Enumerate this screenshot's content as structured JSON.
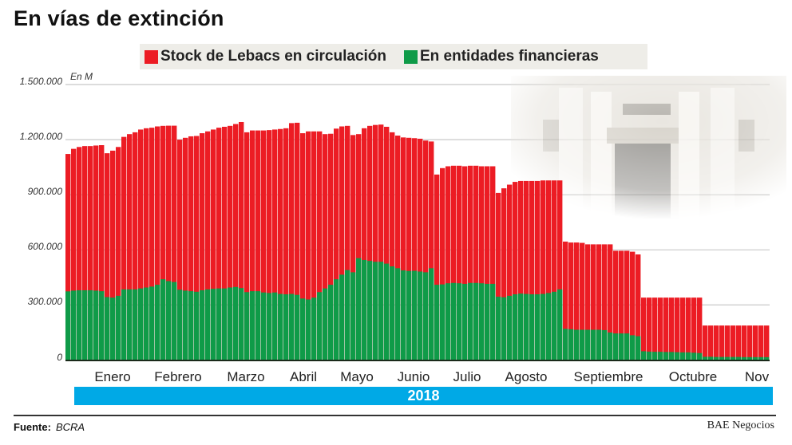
{
  "title": "En vías de extinción",
  "source_label": "Fuente:",
  "source_value": "BCRA",
  "brand": "BAE Negocios",
  "chart_data": {
    "type": "bar",
    "stacked": false,
    "overlapping": true,
    "unit_label": "En M",
    "ylim": [
      0,
      1500000
    ],
    "yticks": [
      "1.500.000",
      "1.200.000",
      "900.000",
      "600.000",
      "300.000",
      "0"
    ],
    "ytick_values": [
      1500000,
      1200000,
      900000,
      600000,
      300000,
      0
    ],
    "grid": true,
    "legend_position": "top",
    "year_label": "2018",
    "months": [
      "Enero",
      "Febrero",
      "Marzo",
      "Abril",
      "Mayo",
      "Junio",
      "Julio",
      "Agosto",
      "Septiembre",
      "Octubre",
      "Nov"
    ],
    "series": [
      {
        "name": "Stock de Lebacs en circulación",
        "color": "#ec1c24",
        "unit": "thousands of M",
        "values": [
          1122,
          1150,
          1160,
          1165,
          1165,
          1168,
          1170,
          1126,
          1140,
          1160,
          1215,
          1230,
          1240,
          1255,
          1262,
          1265,
          1272,
          1275,
          1276,
          1276,
          1200,
          1210,
          1218,
          1220,
          1235,
          1245,
          1255,
          1265,
          1270,
          1275,
          1285,
          1296,
          1240,
          1250,
          1250,
          1250,
          1252,
          1255,
          1258,
          1262,
          1290,
          1292,
          1235,
          1245,
          1245,
          1245,
          1230,
          1232,
          1260,
          1272,
          1275,
          1225,
          1230,
          1262,
          1275,
          1280,
          1282,
          1270,
          1240,
          1222,
          1212,
          1210,
          1208,
          1205,
          1195,
          1190,
          1010,
          1045,
          1055,
          1058,
          1058,
          1055,
          1058,
          1058,
          1055,
          1055,
          1055,
          910,
          935,
          955,
          970,
          975,
          975,
          975,
          975,
          978,
          978,
          978,
          978,
          645,
          640,
          640,
          638,
          630,
          630,
          630,
          630,
          630,
          595,
          595,
          595,
          590,
          575,
          340,
          340,
          340,
          340,
          340,
          340,
          340,
          340,
          340,
          340,
          340,
          188,
          188,
          188,
          188,
          188,
          188,
          188,
          188,
          188,
          188,
          188,
          188
        ]
      },
      {
        "name": "En entidades financieras",
        "color": "#0f9b48",
        "unit": "thousands of M",
        "values": [
          374,
          378,
          380,
          380,
          380,
          378,
          375,
          343,
          340,
          350,
          385,
          385,
          385,
          390,
          395,
          400,
          410,
          440,
          430,
          425,
          383,
          378,
          375,
          372,
          380,
          385,
          388,
          390,
          390,
          395,
          398,
          392,
          370,
          375,
          375,
          368,
          365,
          368,
          360,
          358,
          360,
          355,
          335,
          330,
          340,
          370,
          390,
          410,
          440,
          465,
          490,
          478,
          555,
          545,
          540,
          535,
          535,
          525,
          510,
          500,
          488,
          485,
          486,
          482,
          478,
          500,
          410,
          412,
          418,
          420,
          418,
          415,
          420,
          420,
          418,
          415,
          415,
          345,
          342,
          350,
          358,
          362,
          360,
          358,
          358,
          360,
          365,
          372,
          385,
          170,
          168,
          165,
          165,
          165,
          165,
          165,
          163,
          150,
          145,
          145,
          145,
          135,
          130,
          48,
          46,
          45,
          45,
          44,
          44,
          43,
          42,
          42,
          40,
          38,
          18,
          18,
          17,
          17,
          17,
          17,
          17,
          16,
          16,
          16,
          16,
          16
        ]
      }
    ]
  }
}
